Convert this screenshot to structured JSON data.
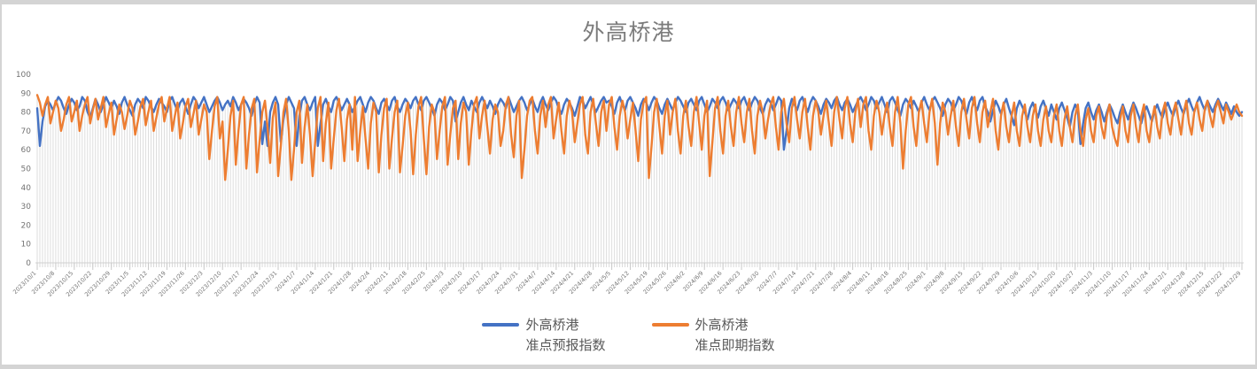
{
  "chart": {
    "title": "外高桥港",
    "legend": [
      {
        "line1": "外高桥港",
        "line2": "准点预报指数",
        "color": "#4472C4"
      },
      {
        "line1": "外高桥港",
        "line2": "准点即期指数",
        "color": "#ED7D31"
      }
    ]
  },
  "chart_data": {
    "type": "line",
    "title": "外高桥港",
    "xlabel": "",
    "ylabel": "",
    "ylim": [
      0,
      100
    ],
    "y_ticks": [
      0,
      10,
      20,
      30,
      40,
      50,
      60,
      70,
      80,
      90,
      100
    ],
    "grid": false,
    "drop_lines": true,
    "legend_position": "bottom",
    "x_points_per_tick": 7,
    "x_tick_labels": [
      "2023/10/1",
      "2023/10/8",
      "2023/10/15",
      "2023/10/22",
      "2023/10/29",
      "2023/11/5",
      "2023/11/12",
      "2023/11/19",
      "2023/11/26",
      "2023/12/3",
      "2023/12/10",
      "2023/12/17",
      "2023/12/24",
      "2023/12/31",
      "2024/1/7",
      "2024/1/14",
      "2024/1/21",
      "2024/1/28",
      "2024/2/4",
      "2024/2/11",
      "2024/2/18",
      "2024/2/25",
      "2024/3/3",
      "2024/3/10",
      "2024/3/17",
      "2024/3/24",
      "2024/3/31",
      "2024/4/7",
      "2024/4/14",
      "2024/4/21",
      "2024/4/28",
      "2024/5/5",
      "2024/5/12",
      "2024/5/19",
      "2024/5/26",
      "2024/6/2",
      "2024/6/9",
      "2024/6/16",
      "2024/6/23",
      "2024/6/30",
      "2024/7/7",
      "2024/7/14",
      "2024/7/21",
      "2024/7/28",
      "2024/8/4",
      "2024/8/11",
      "2024/8/18",
      "2024/8/25",
      "2024/9/1",
      "2024/9/8",
      "2024/9/15",
      "2024/9/22",
      "2024/9/29",
      "2024/10/6",
      "2024/10/13",
      "2024/10/20",
      "2024/10/27",
      "2024/11/3",
      "2024/11/10",
      "2024/11/17",
      "2024/11/24",
      "2024/12/1",
      "2024/12/8",
      "2024/12/15",
      "2024/12/22",
      "2024/12/29"
    ],
    "series": [
      {
        "name": "外高桥港 准点预报指数",
        "color": "#4472C4",
        "values": [
          82,
          62,
          75,
          83,
          86,
          84,
          81,
          85,
          88,
          86,
          82,
          79,
          84,
          87,
          85,
          81,
          83,
          88,
          86,
          80,
          77,
          82,
          87,
          84,
          80,
          84,
          88,
          85,
          82,
          86,
          83,
          79,
          85,
          88,
          84,
          81,
          78,
          84,
          87,
          85,
          82,
          88,
          86,
          83,
          80,
          84,
          87,
          85,
          83,
          80,
          86,
          88,
          84,
          81,
          85,
          87,
          83,
          79,
          84,
          88,
          86,
          82,
          85,
          88,
          84,
          80,
          83,
          86,
          88,
          85,
          81,
          84,
          86,
          83,
          88,
          85,
          81,
          84,
          87,
          85,
          82,
          78,
          84,
          88,
          85,
          63,
          75,
          62,
          80,
          85,
          88,
          84,
          64,
          76,
          84,
          88,
          85,
          82,
          62,
          78,
          86,
          88,
          84,
          81,
          85,
          88,
          62,
          74,
          84,
          87,
          83,
          80,
          86,
          88,
          85,
          81,
          84,
          87,
          84,
          80,
          83,
          86,
          88,
          84,
          80,
          85,
          88,
          86,
          82,
          79,
          85,
          87,
          84,
          81,
          86,
          88,
          83,
          80,
          84,
          87,
          85,
          82,
          86,
          88,
          84,
          81,
          86,
          88,
          85,
          82,
          78,
          84,
          87,
          85,
          81,
          84,
          88,
          86,
          75,
          80,
          85,
          88,
          84,
          81,
          86,
          83,
          80,
          85,
          88,
          85,
          82,
          86,
          83,
          79,
          84,
          87,
          85,
          82,
          88,
          84,
          80,
          83,
          86,
          88,
          85,
          81,
          84,
          87,
          83,
          80,
          85,
          88,
          84,
          81,
          85,
          88,
          86,
          82,
          79,
          84,
          87,
          85,
          82,
          78,
          83,
          88,
          86,
          82,
          85,
          88,
          84,
          80,
          83,
          86,
          88,
          85,
          86,
          83,
          79,
          85,
          88,
          84,
          81,
          86,
          88,
          85,
          82,
          78,
          84,
          87,
          85,
          81,
          85,
          88,
          86,
          82,
          79,
          84,
          87,
          84,
          81,
          85,
          88,
          86,
          83,
          80,
          85,
          87,
          84,
          81,
          86,
          88,
          84,
          80,
          83,
          87,
          85,
          82,
          86,
          88,
          85,
          81,
          84,
          87,
          85,
          82,
          86,
          88,
          84,
          81,
          85,
          88,
          86,
          82,
          79,
          84,
          87,
          85,
          81,
          84,
          88,
          86,
          60,
          70,
          82,
          87,
          84,
          81,
          86,
          88,
          84,
          80,
          85,
          88,
          86,
          83,
          79,
          84,
          87,
          85,
          82,
          86,
          88,
          84,
          81,
          85,
          87,
          84,
          80,
          83,
          86,
          88,
          85,
          81,
          84,
          88,
          86,
          82,
          85,
          88,
          84,
          80,
          86,
          88,
          85,
          81,
          78,
          84,
          87,
          85,
          82,
          86,
          83,
          80,
          85,
          88,
          84,
          81,
          86,
          88,
          85,
          82,
          78,
          84,
          87,
          85,
          81,
          84,
          88,
          86,
          82,
          79,
          85,
          88,
          84,
          81,
          86,
          88,
          83,
          80,
          75,
          81,
          86,
          83,
          79,
          84,
          87,
          82,
          78,
          73,
          82,
          86,
          83,
          80,
          76,
          82,
          85,
          81,
          77,
          83,
          86,
          82,
          78,
          84,
          80,
          76,
          82,
          85,
          81,
          77,
          72,
          80,
          84,
          81,
          63,
          74,
          82,
          85,
          80,
          76,
          81,
          84,
          80,
          75,
          80,
          84,
          81,
          77,
          74,
          80,
          84,
          80,
          76,
          81,
          85,
          82,
          78,
          74,
          80,
          83,
          79,
          75,
          81,
          84,
          80,
          77,
          82,
          85,
          81,
          78,
          83,
          86,
          82,
          79,
          84,
          87,
          83,
          80,
          85,
          88,
          84,
          81,
          86,
          83,
          80,
          84,
          87,
          84,
          81,
          85,
          82,
          79,
          83,
          80,
          78,
          80
        ]
      },
      {
        "name": "外高桥港 准点即期指数",
        "color": "#ED7D31",
        "values": [
          89,
          85,
          78,
          84,
          88,
          74,
          80,
          86,
          82,
          70,
          76,
          84,
          88,
          75,
          80,
          86,
          70,
          78,
          84,
          88,
          74,
          81,
          87,
          76,
          82,
          88,
          72,
          79,
          85,
          68,
          76,
          84,
          80,
          71,
          78,
          86,
          82,
          68,
          75,
          83,
          87,
          73,
          80,
          86,
          70,
          77,
          84,
          88,
          75,
          82,
          88,
          70,
          78,
          85,
          66,
          74,
          83,
          87,
          72,
          79,
          86,
          68,
          76,
          84,
          80,
          55,
          70,
          83,
          88,
          66,
          75,
          44,
          60,
          78,
          86,
          52,
          70,
          84,
          88,
          50,
          68,
          82,
          87,
          48,
          65,
          80,
          86,
          72,
          53,
          77,
          85,
          46,
          62,
          80,
          87,
          70,
          44,
          60,
          80,
          86,
          53,
          72,
          84,
          68,
          46,
          64,
          82,
          88,
          54,
          74,
          85,
          50,
          66,
          81,
          87,
          72,
          54,
          76,
          84,
          60,
          88,
          54,
          70,
          83,
          66,
          50,
          74,
          85,
          80,
          48,
          68,
          82,
          87,
          50,
          66,
          80,
          86,
          48,
          62,
          78,
          85,
          70,
          47,
          68,
          83,
          88,
          66,
          47,
          72,
          84,
          80,
          55,
          70,
          83,
          88,
          52,
          68,
          82,
          86,
          55,
          74,
          85,
          80,
          52,
          70,
          84,
          88,
          66,
          78,
          86,
          72,
          58,
          76,
          84,
          80,
          62,
          70,
          84,
          88,
          68,
          56,
          78,
          86,
          45,
          60,
          78,
          86,
          88,
          70,
          58,
          78,
          86,
          72,
          84,
          88,
          66,
          76,
          85,
          70,
          58,
          78,
          86,
          80,
          64,
          74,
          84,
          88,
          68,
          58,
          80,
          87,
          74,
          62,
          80,
          86,
          70,
          84,
          88,
          72,
          60,
          78,
          86,
          80,
          66,
          76,
          85,
          70,
          54,
          76,
          85,
          88,
          45,
          62,
          80,
          87,
          72,
          58,
          78,
          86,
          68,
          80,
          87,
          70,
          58,
          78,
          86,
          72,
          62,
          80,
          88,
          74,
          60,
          78,
          86,
          46,
          64,
          82,
          88,
          70,
          58,
          78,
          86,
          72,
          62,
          80,
          88,
          74,
          64,
          80,
          87,
          70,
          58,
          78,
          86,
          80,
          66,
          76,
          84,
          88,
          72,
          60,
          80,
          87,
          74,
          64,
          82,
          88,
          76,
          66,
          80,
          87,
          72,
          60,
          78,
          86,
          80,
          68,
          78,
          86,
          74,
          62,
          80,
          88,
          76,
          66,
          82,
          88,
          74,
          64,
          80,
          87,
          72,
          84,
          88,
          70,
          60,
          78,
          86,
          80,
          68,
          78,
          85,
          72,
          62,
          80,
          88,
          74,
          50,
          70,
          84,
          88,
          72,
          62,
          80,
          86,
          74,
          64,
          80,
          87,
          74,
          52,
          74,
          85,
          80,
          68,
          78,
          86,
          72,
          62,
          80,
          87,
          76,
          66,
          82,
          88,
          74,
          64,
          80,
          86,
          72,
          80,
          87,
          70,
          60,
          78,
          85,
          72,
          64,
          78,
          85,
          70,
          62,
          78,
          84,
          72,
          64,
          78,
          84,
          70,
          62,
          76,
          83,
          70,
          64,
          78,
          84,
          70,
          62,
          76,
          83,
          72,
          64,
          78,
          84,
          70,
          62,
          76,
          82,
          70,
          64,
          78,
          83,
          72,
          66,
          78,
          84,
          72,
          66,
          62,
          76,
          83,
          70,
          64,
          78,
          84,
          72,
          64,
          78,
          84,
          70,
          64,
          76,
          83,
          72,
          66,
          80,
          85,
          74,
          68,
          80,
          85,
          76,
          68,
          80,
          86,
          74,
          68,
          80,
          85,
          76,
          70,
          82,
          86,
          78,
          72,
          82,
          86,
          80,
          74,
          84,
          80,
          76,
          80,
          84,
          80,
          78
        ]
      }
    ]
  }
}
